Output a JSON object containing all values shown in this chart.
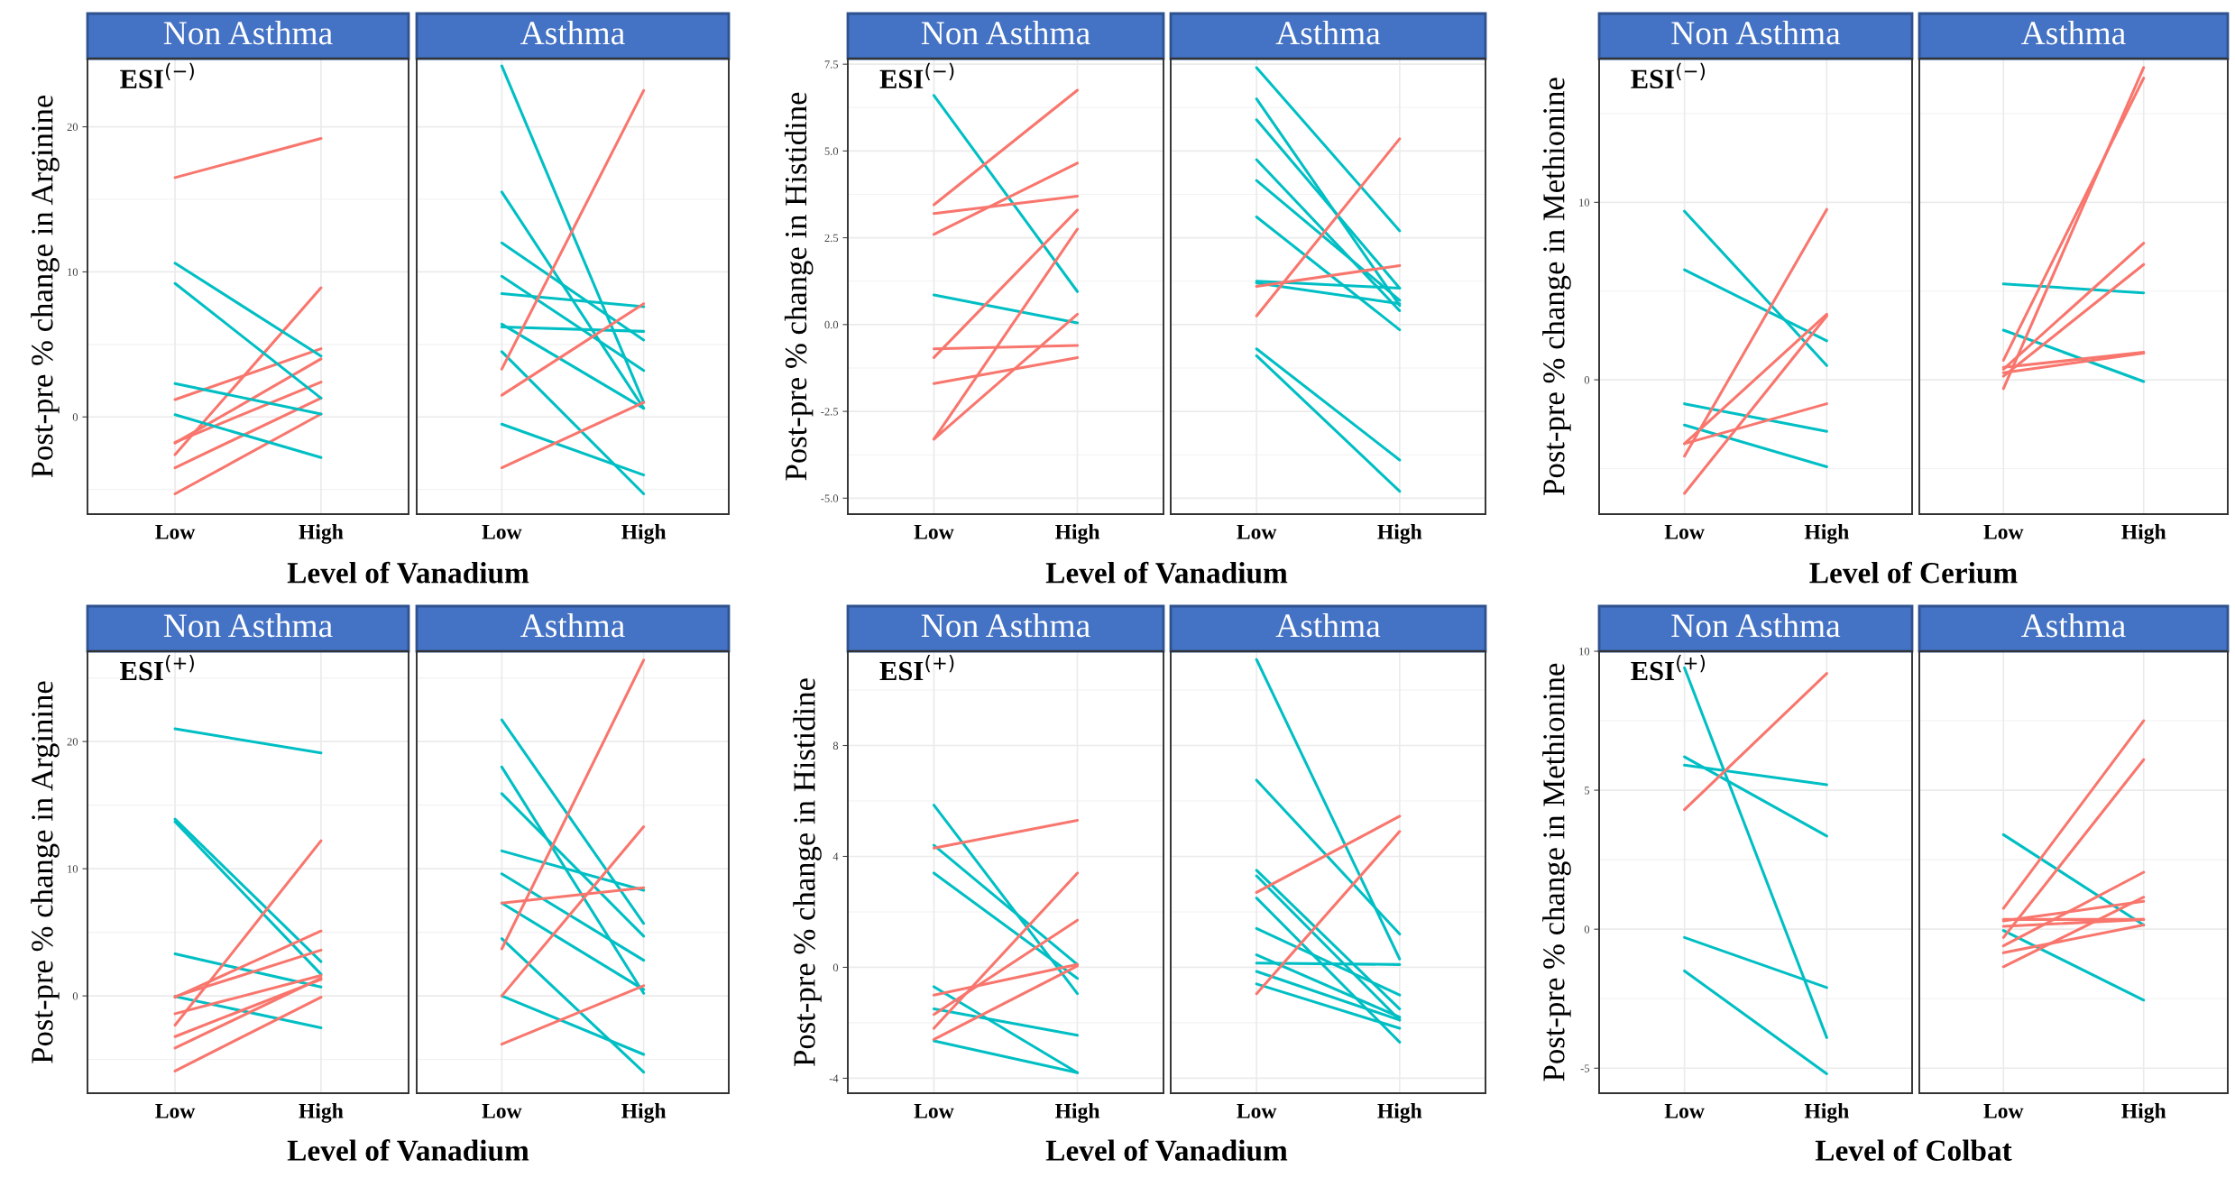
{
  "chart_data": [
    {
      "type": "line",
      "title": "Non Asthma",
      "ylabel": "Post-pre % change in Arginine",
      "xlabel": "Level of Vanadium",
      "annotations": [
        "ESI$^{(−)}$"
      ],
      "categories": [
        "Low",
        "High"
      ],
      "ylim": [
        -6.7,
        24.7
      ],
      "yticks": [
        0,
        10,
        20
      ],
      "grid": true,
      "series": [
        {
          "color": "#f8766d",
          "values": [
            16.5,
            19.2
          ]
        },
        {
          "color": "#f8766d",
          "values": [
            -2.6,
            8.9
          ]
        },
        {
          "color": "#f8766d",
          "values": [
            1.2,
            4.7
          ]
        },
        {
          "color": "#f8766d",
          "values": [
            -1.8,
            4.0
          ]
        },
        {
          "color": "#f8766d",
          "values": [
            -1.75,
            2.4
          ]
        },
        {
          "color": "#f8766d",
          "values": [
            -3.5,
            1.3
          ]
        },
        {
          "color": "#f8766d",
          "values": [
            -5.3,
            0.2
          ]
        },
        {
          "color": "#00bfc4",
          "values": [
            10.6,
            4.2
          ]
        },
        {
          "color": "#00bfc4",
          "values": [
            9.2,
            1.3
          ]
        },
        {
          "color": "#00bfc4",
          "values": [
            2.3,
            0.2
          ]
        },
        {
          "color": "#00bfc4",
          "values": [
            0.15,
            -2.8
          ]
        }
      ]
    },
    {
      "type": "line",
      "title": "Asthma",
      "categories": [
        "Low",
        "High"
      ],
      "ylim": [
        -6.7,
        24.7
      ],
      "yticks": [
        0,
        10,
        20
      ],
      "grid": true,
      "tick_labels": "x",
      "series": [
        {
          "color": "#00bfc4",
          "values": [
            24.2,
            1.0
          ]
        },
        {
          "color": "#00bfc4",
          "values": [
            15.5,
            0.6
          ]
        },
        {
          "color": "#00bfc4",
          "values": [
            12.0,
            5.3
          ]
        },
        {
          "color": "#00bfc4",
          "values": [
            9.7,
            3.2
          ]
        },
        {
          "color": "#00bfc4",
          "values": [
            8.5,
            7.6
          ]
        },
        {
          "color": "#00bfc4",
          "values": [
            6.2,
            5.9
          ]
        },
        {
          "color": "#00bfc4",
          "values": [
            6.4,
            0.6
          ]
        },
        {
          "color": "#00bfc4",
          "values": [
            4.5,
            -5.3
          ]
        },
        {
          "color": "#00bfc4",
          "values": [
            -0.5,
            -4.0
          ]
        },
        {
          "color": "#f8766d",
          "values": [
            3.3,
            22.5
          ]
        },
        {
          "color": "#f8766d",
          "values": [
            1.5,
            7.8
          ]
        },
        {
          "color": "#f8766d",
          "values": [
            -3.5,
            1.0
          ]
        }
      ]
    },
    {
      "type": "line",
      "title": "Non Asthma",
      "ylabel": "Post-pre % change in Histidine",
      "xlabel": "Level of Vanadium",
      "annotations": [
        "ESI$^{(−)}$"
      ],
      "categories": [
        "Low",
        "High"
      ],
      "ylim": [
        -5.46,
        7.66
      ],
      "yticks": [
        {
          "value": -5,
          "label": "-5.0"
        },
        {
          "value": -2.5,
          "label": "-2.5"
        },
        {
          "value": 0,
          "label": "0.0"
        },
        {
          "value": 2.5,
          "label": "2.5"
        },
        {
          "value": 5,
          "label": "5.0"
        },
        {
          "value": 7.5,
          "label": "7.5"
        }
      ],
      "grid": true,
      "series": [
        {
          "color": "#00bfc4",
          "values": [
            6.6,
            0.95
          ]
        },
        {
          "color": "#00bfc4",
          "values": [
            0.85,
            0.05
          ]
        },
        {
          "color": "#f8766d",
          "values": [
            3.45,
            6.75
          ]
        },
        {
          "color": "#f8766d",
          "values": [
            3.2,
            3.7
          ]
        },
        {
          "color": "#f8766d",
          "values": [
            2.6,
            4.65
          ]
        },
        {
          "color": "#f8766d",
          "values": [
            -0.95,
            3.3
          ]
        },
        {
          "color": "#f8766d",
          "values": [
            -3.3,
            2.75
          ]
        },
        {
          "color": "#f8766d",
          "values": [
            -0.7,
            -0.6
          ]
        },
        {
          "color": "#f8766d",
          "values": [
            -1.7,
            -0.95
          ]
        },
        {
          "color": "#f8766d",
          "values": [
            -3.3,
            0.3
          ]
        }
      ]
    },
    {
      "type": "line",
      "title": "Asthma",
      "categories": [
        "Low",
        "High"
      ],
      "ylim": [
        -5.46,
        7.66
      ],
      "yticks": [
        -5,
        -2.5,
        0,
        2.5,
        5,
        7.5
      ],
      "grid": true,
      "tick_labels": "x",
      "series": [
        {
          "color": "#00bfc4",
          "values": [
            7.4,
            2.7
          ]
        },
        {
          "color": "#00bfc4",
          "values": [
            6.5,
            0.55
          ]
        },
        {
          "color": "#00bfc4",
          "values": [
            5.9,
            1.05
          ]
        },
        {
          "color": "#00bfc4",
          "values": [
            4.75,
            0.4
          ]
        },
        {
          "color": "#00bfc4",
          "values": [
            4.15,
            0.7
          ]
        },
        {
          "color": "#00bfc4",
          "values": [
            3.1,
            -0.15
          ]
        },
        {
          "color": "#00bfc4",
          "values": [
            1.25,
            1.05
          ]
        },
        {
          "color": "#00bfc4",
          "values": [
            1.2,
            0.6
          ]
        },
        {
          "color": "#00bfc4",
          "values": [
            -0.7,
            -3.9
          ]
        },
        {
          "color": "#00bfc4",
          "values": [
            -0.9,
            -4.8
          ]
        },
        {
          "color": "#f8766d",
          "values": [
            0.25,
            5.35
          ]
        },
        {
          "color": "#f8766d",
          "values": [
            1.1,
            1.7
          ]
        }
      ]
    },
    {
      "type": "line",
      "title": "Non Asthma",
      "ylabel": "Post-pre % change in Methionine",
      "xlabel": "Level of Cerium",
      "annotations": [
        "ESI$^{(−)}$"
      ],
      "categories": [
        "Low",
        "High"
      ],
      "ylim": [
        -7.57,
        18.1
      ],
      "yticks": [
        0,
        10
      ],
      "grid": true,
      "series": [
        {
          "color": "#00bfc4",
          "values": [
            9.5,
            0.8
          ]
        },
        {
          "color": "#00bfc4",
          "values": [
            6.2,
            2.2
          ]
        },
        {
          "color": "#00bfc4",
          "values": [
            -1.35,
            -2.9
          ]
        },
        {
          "color": "#00bfc4",
          "values": [
            -2.55,
            -4.9
          ]
        },
        {
          "color": "#f8766d",
          "values": [
            -4.3,
            9.6
          ]
        },
        {
          "color": "#f8766d",
          "values": [
            -6.4,
            3.6
          ]
        },
        {
          "color": "#f8766d",
          "values": [
            -3.6,
            3.7
          ]
        },
        {
          "color": "#f8766d",
          "values": [
            -3.6,
            -1.35
          ]
        }
      ]
    },
    {
      "type": "line",
      "title": "Asthma",
      "categories": [
        "Low",
        "High"
      ],
      "ylim": [
        -7.57,
        18.1
      ],
      "yticks": [
        0,
        10
      ],
      "grid": true,
      "tick_labels": "x",
      "series": [
        {
          "color": "#00bfc4",
          "values": [
            5.4,
            4.9
          ]
        },
        {
          "color": "#00bfc4",
          "values": [
            2.8,
            -0.1
          ]
        },
        {
          "color": "#f8766d",
          "values": [
            1.1,
            17.0
          ]
        },
        {
          "color": "#f8766d",
          "values": [
            -0.5,
            17.6
          ]
        },
        {
          "color": "#f8766d",
          "values": [
            0.6,
            7.7
          ]
        },
        {
          "color": "#f8766d",
          "values": [
            0.2,
            6.5
          ]
        },
        {
          "color": "#f8766d",
          "values": [
            0.7,
            1.55
          ]
        },
        {
          "color": "#f8766d",
          "values": [
            0.4,
            1.5
          ]
        }
      ]
    },
    {
      "type": "line",
      "title": "Non Asthma",
      "ylabel": "Post-pre % change in Arginine",
      "xlabel": "Level of Vanadium",
      "annotations": [
        "ESI$^{(+)}$"
      ],
      "categories": [
        "Low",
        "High"
      ],
      "ylim": [
        -7.65,
        27.1
      ],
      "yticks": [
        0,
        10,
        20
      ],
      "grid": true,
      "series": [
        {
          "color": "#00bfc4",
          "values": [
            21.0,
            19.1
          ]
        },
        {
          "color": "#00bfc4",
          "values": [
            13.9,
            2.7
          ]
        },
        {
          "color": "#00bfc4",
          "values": [
            13.7,
            1.7
          ]
        },
        {
          "color": "#00bfc4",
          "values": [
            3.3,
            0.7
          ]
        },
        {
          "color": "#00bfc4",
          "values": [
            -0.05,
            -2.5
          ]
        },
        {
          "color": "#f8766d",
          "values": [
            -2.3,
            12.2
          ]
        },
        {
          "color": "#f8766d",
          "values": [
            -0.1,
            5.1
          ]
        },
        {
          "color": "#f8766d",
          "values": [
            -0.05,
            3.6
          ]
        },
        {
          "color": "#f8766d",
          "values": [
            -1.4,
            1.6
          ]
        },
        {
          "color": "#f8766d",
          "values": [
            -3.2,
            1.3
          ]
        },
        {
          "color": "#f8766d",
          "values": [
            -4.1,
            1.4
          ]
        },
        {
          "color": "#f8766d",
          "values": [
            -5.9,
            -0.1
          ]
        }
      ]
    },
    {
      "type": "line",
      "title": "Asthma",
      "categories": [
        "Low",
        "High"
      ],
      "ylim": [
        -7.65,
        27.1
      ],
      "yticks": [
        0,
        10,
        20
      ],
      "grid": true,
      "tick_labels": "x",
      "series": [
        {
          "color": "#00bfc4",
          "values": [
            21.7,
            5.7
          ]
        },
        {
          "color": "#00bfc4",
          "values": [
            18.0,
            0.2
          ]
        },
        {
          "color": "#00bfc4",
          "values": [
            15.9,
            4.7
          ]
        },
        {
          "color": "#00bfc4",
          "values": [
            11.4,
            8.3
          ]
        },
        {
          "color": "#00bfc4",
          "values": [
            9.6,
            2.8
          ]
        },
        {
          "color": "#00bfc4",
          "values": [
            7.3,
            0.5
          ]
        },
        {
          "color": "#00bfc4",
          "values": [
            4.5,
            -6.0
          ]
        },
        {
          "color": "#00bfc4",
          "values": [
            0.0,
            -4.6
          ]
        },
        {
          "color": "#f8766d",
          "values": [
            3.7,
            26.4
          ]
        },
        {
          "color": "#f8766d",
          "values": [
            0.0,
            13.3
          ]
        },
        {
          "color": "#f8766d",
          "values": [
            7.3,
            8.5
          ]
        },
        {
          "color": "#f8766d",
          "values": [
            -3.8,
            0.8
          ]
        }
      ]
    },
    {
      "type": "line",
      "title": "Non Asthma",
      "ylabel": "Post-pre % change in Histidine",
      "xlabel": "Level of Vanadium",
      "annotations": [
        "ESI$^{(+)}$"
      ],
      "categories": [
        "Low",
        "High"
      ],
      "ylim": [
        -4.54,
        11.4
      ],
      "yticks": [
        -4,
        0,
        4,
        8
      ],
      "grid": true,
      "series": [
        {
          "color": "#00bfc4",
          "values": [
            5.85,
            -0.95
          ]
        },
        {
          "color": "#00bfc4",
          "values": [
            4.4,
            0.1
          ]
        },
        {
          "color": "#00bfc4",
          "values": [
            3.4,
            -0.4
          ]
        },
        {
          "color": "#00bfc4",
          "values": [
            -0.7,
            -3.8
          ]
        },
        {
          "color": "#00bfc4",
          "values": [
            -1.5,
            -2.45
          ]
        },
        {
          "color": "#00bfc4",
          "values": [
            -2.65,
            -3.8
          ]
        },
        {
          "color": "#f8766d",
          "values": [
            4.3,
            5.3
          ]
        },
        {
          "color": "#f8766d",
          "values": [
            -1.0,
            0.1
          ]
        },
        {
          "color": "#f8766d",
          "values": [
            -1.7,
            1.7
          ]
        },
        {
          "color": "#f8766d",
          "values": [
            -2.2,
            3.4
          ]
        },
        {
          "color": "#f8766d",
          "values": [
            -2.6,
            0.05
          ]
        }
      ]
    },
    {
      "type": "line",
      "title": "Asthma",
      "categories": [
        "Low",
        "High"
      ],
      "ylim": [
        -4.54,
        11.4
      ],
      "yticks": [
        -4,
        0,
        4,
        8
      ],
      "grid": true,
      "tick_labels": "x",
      "series": [
        {
          "color": "#00bfc4",
          "values": [
            11.1,
            0.3
          ]
        },
        {
          "color": "#00bfc4",
          "values": [
            6.75,
            1.2
          ]
        },
        {
          "color": "#00bfc4",
          "values": [
            3.5,
            -1.5
          ]
        },
        {
          "color": "#00bfc4",
          "values": [
            3.3,
            -1.9
          ]
        },
        {
          "color": "#00bfc4",
          "values": [
            2.5,
            -2.7
          ]
        },
        {
          "color": "#00bfc4",
          "values": [
            1.4,
            -1.0
          ]
        },
        {
          "color": "#00bfc4",
          "values": [
            0.45,
            -1.8
          ]
        },
        {
          "color": "#00bfc4",
          "values": [
            0.15,
            0.1
          ]
        },
        {
          "color": "#00bfc4",
          "values": [
            -0.15,
            -1.9
          ]
        },
        {
          "color": "#00bfc4",
          "values": [
            -0.6,
            -2.2
          ]
        },
        {
          "color": "#f8766d",
          "values": [
            2.7,
            5.45
          ]
        },
        {
          "color": "#f8766d",
          "values": [
            -0.95,
            4.9
          ]
        }
      ]
    },
    {
      "type": "line",
      "title": "Non Asthma",
      "ylabel": "Post-pre % change in Methionine",
      "xlabel": "Level of Colbat",
      "annotations": [
        "ESI$^{(+)}$"
      ],
      "categories": [
        "Low",
        "High"
      ],
      "ylim": [
        -5.9,
        10.0
      ],
      "yticks": [
        -5,
        0,
        5,
        10
      ],
      "grid": true,
      "series": [
        {
          "color": "#00bfc4",
          "values": [
            9.4,
            -3.9
          ]
        },
        {
          "color": "#00bfc4",
          "values": [
            6.2,
            3.35
          ]
        },
        {
          "color": "#00bfc4",
          "values": [
            5.9,
            5.2
          ]
        },
        {
          "color": "#00bfc4",
          "values": [
            -0.3,
            -2.1
          ]
        },
        {
          "color": "#00bfc4",
          "values": [
            -1.5,
            -5.2
          ]
        },
        {
          "color": "#f8766d",
          "values": [
            4.3,
            9.2
          ]
        }
      ]
    },
    {
      "type": "line",
      "title": "Asthma",
      "categories": [
        "Low",
        "High"
      ],
      "ylim": [
        -5.9,
        10.0
      ],
      "yticks": [
        -5,
        0,
        5,
        10
      ],
      "grid": true,
      "tick_labels": "x",
      "series": [
        {
          "color": "#00bfc4",
          "values": [
            3.4,
            0.15
          ]
        },
        {
          "color": "#00bfc4",
          "values": [
            -0.05,
            -2.55
          ]
        },
        {
          "color": "#f8766d",
          "values": [
            0.75,
            7.5
          ]
        },
        {
          "color": "#f8766d",
          "values": [
            -0.3,
            6.1
          ]
        },
        {
          "color": "#f8766d",
          "values": [
            -0.6,
            2.05
          ]
        },
        {
          "color": "#f8766d",
          "values": [
            0.35,
            0.35
          ]
        },
        {
          "color": "#f8766d",
          "values": [
            0.1,
            0.35
          ]
        },
        {
          "color": "#f8766d",
          "values": [
            -0.85,
            0.15
          ]
        },
        {
          "color": "#f8766d",
          "values": [
            -1.35,
            1.15
          ]
        },
        {
          "color": "#f8766d",
          "values": [
            0.3,
            1.0
          ]
        }
      ]
    }
  ]
}
